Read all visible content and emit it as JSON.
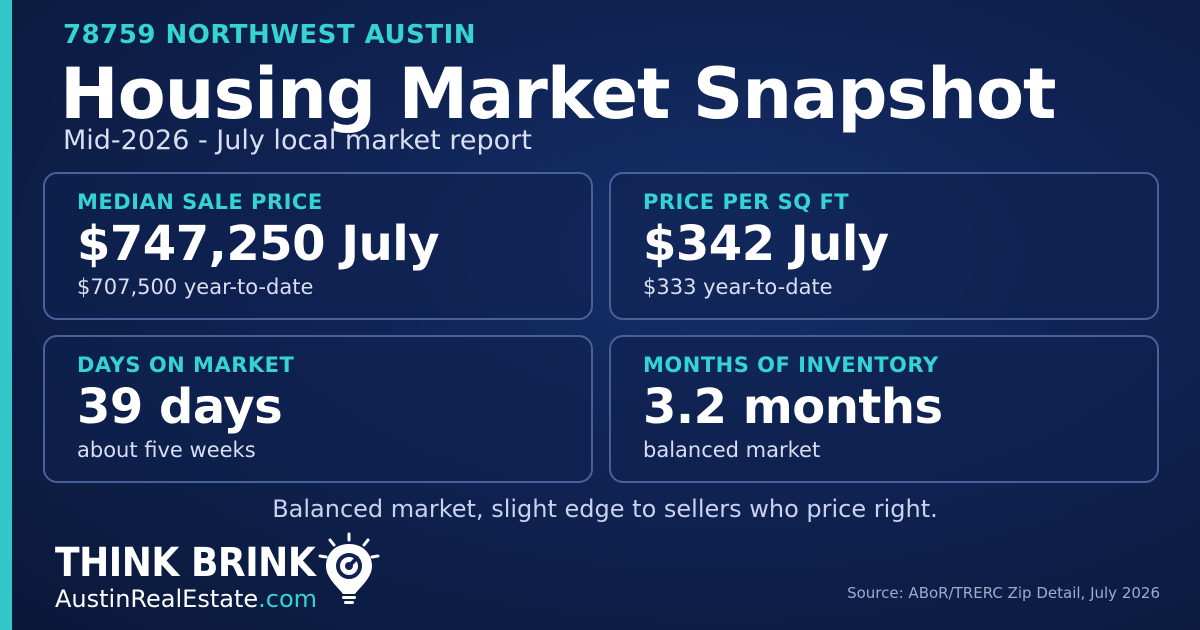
{
  "header": {
    "eyebrow": "78759 NORTHWEST AUSTIN",
    "title": "Housing Market Snapshot",
    "subtitle": "Mid-2026 - July local market report"
  },
  "cards": [
    {
      "label": "MEDIAN SALE PRICE",
      "value": "$747,250 July",
      "note": "$707,500 year-to-date"
    },
    {
      "label": "PRICE PER SQ FT",
      "value": "$342 July",
      "note": "$333 year-to-date"
    },
    {
      "label": "DAYS ON MARKET",
      "value": "39 days",
      "note": "about five weeks"
    },
    {
      "label": "MONTHS OF INVENTORY",
      "value": "3.2 months",
      "note": "balanced market"
    }
  ],
  "tagline": "Balanced market, slight edge to sellers who price right.",
  "brand": {
    "name": "THINK BRINK",
    "site_main": "AustinRealEstate",
    "site_tld": ".com",
    "logo_icon": "lightbulb-map-pin-icon"
  },
  "source": "Source: ABoR/TRERC Zip Detail, July 2026",
  "colors": {
    "background": "#0f2252",
    "accent": "#35d3d3",
    "card_border": "#4a6099",
    "text": "#ffffff"
  }
}
